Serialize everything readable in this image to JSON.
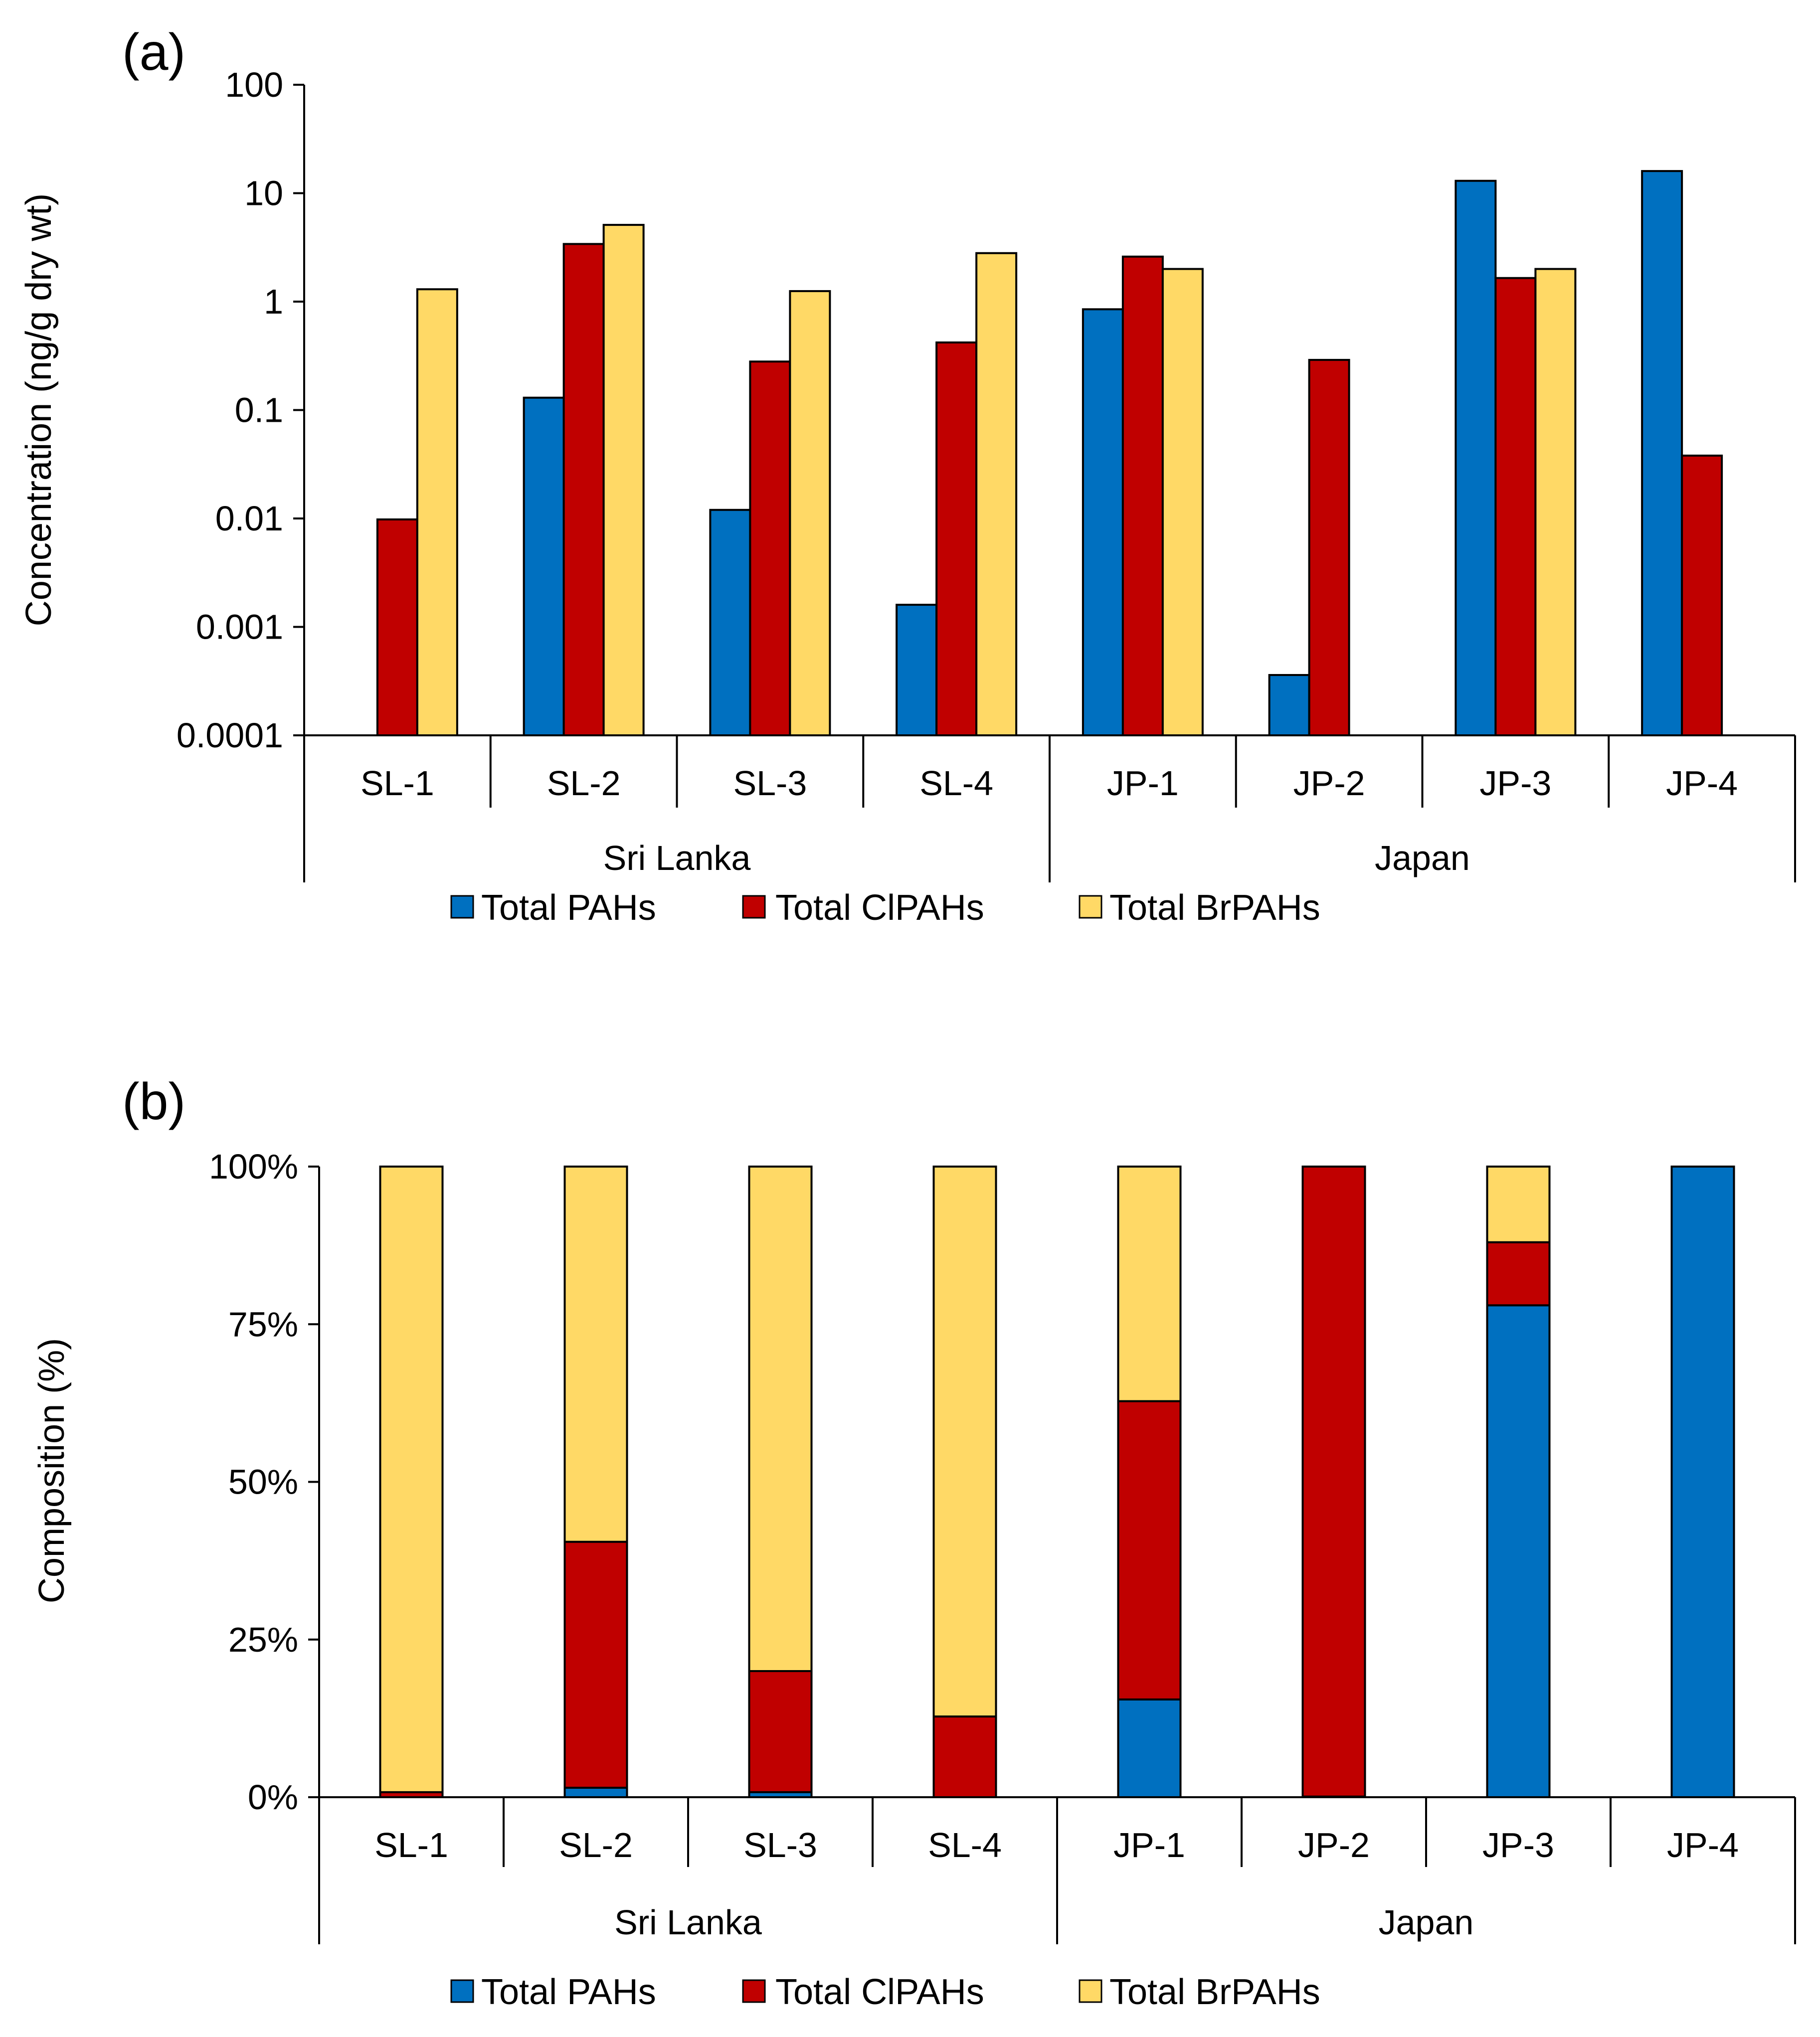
{
  "legend": [
    "Total PAHs",
    "Total ClPAHs",
    "Total BrPAHs"
  ],
  "colors": {
    "pahs": "#0070C0",
    "clpahs": "#C00000",
    "brpahs": "#FFD966"
  },
  "chart_data": [
    {
      "panel": "(a)",
      "type": "bar",
      "scale": "log",
      "ylabel": "Concentration (ng/g dry wt)",
      "ylim": [
        0.0001,
        100
      ],
      "yticks": [
        "0.0001",
        "0.001",
        "0.01",
        "0.1",
        "1",
        "10",
        "100"
      ],
      "categories": [
        "SL-1",
        "SL-2",
        "SL-3",
        "SL-4",
        "JP-1",
        "JP-2",
        "JP-3",
        "JP-4"
      ],
      "groups": [
        {
          "label": "Sri Lanka",
          "categories": [
            "SL-1",
            "SL-2",
            "SL-3",
            "SL-4"
          ]
        },
        {
          "label": "Japan",
          "categories": [
            "JP-1",
            "JP-2",
            "JP-3",
            "JP-4"
          ]
        }
      ],
      "series": [
        {
          "name": "Total PAHs",
          "values": [
            null,
            0.13,
            0.012,
            0.0016,
            0.85,
            0.00036,
            13,
            16
          ]
        },
        {
          "name": "Total ClPAHs",
          "values": [
            0.0098,
            3.4,
            0.28,
            0.42,
            2.6,
            0.29,
            1.65,
            0.038
          ]
        },
        {
          "name": "Total BrPAHs",
          "values": [
            1.3,
            5.1,
            1.25,
            2.8,
            2.0,
            null,
            2.0,
            null
          ]
        }
      ]
    },
    {
      "panel": "(b)",
      "type": "bar",
      "stacked": true,
      "ylabel": "Composition (%)",
      "ylim": [
        0,
        100
      ],
      "yticks": [
        "0%",
        "25%",
        "50%",
        "75%",
        "100%"
      ],
      "categories": [
        "SL-1",
        "SL-2",
        "SL-3",
        "SL-4",
        "JP-1",
        "JP-2",
        "JP-3",
        "JP-4"
      ],
      "groups": [
        {
          "label": "Sri Lanka",
          "categories": [
            "SL-1",
            "SL-2",
            "SL-3",
            "SL-4"
          ]
        },
        {
          "label": "Japan",
          "categories": [
            "JP-1",
            "JP-2",
            "JP-3",
            "JP-4"
          ]
        }
      ],
      "series": [
        {
          "name": "Total PAHs",
          "values": [
            0,
            1.5,
            0.8,
            0,
            15.5,
            0.1,
            78,
            100
          ]
        },
        {
          "name": "Total ClPAHs",
          "values": [
            0.8,
            39,
            19.2,
            12.8,
            47.3,
            99.9,
            10,
            0
          ]
        },
        {
          "name": "Total BrPAHs",
          "values": [
            99.2,
            59.5,
            80,
            87.2,
            37.2,
            0,
            12,
            0
          ]
        }
      ]
    }
  ]
}
